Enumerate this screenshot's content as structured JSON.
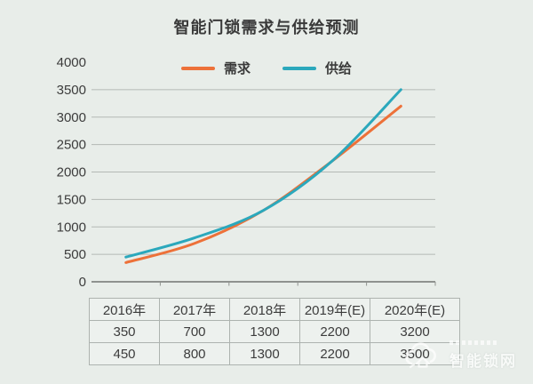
{
  "title": "智能门锁需求与供给预测",
  "chart_data": {
    "type": "line",
    "title": "智能门锁需求与供给预测",
    "categories": [
      "2016年",
      "2017年",
      "2018年",
      "2019年(E)",
      "2020年(E)"
    ],
    "series": [
      {
        "name": "需求",
        "color": "#ed7139",
        "values": [
          350,
          700,
          1300,
          2200,
          3200
        ]
      },
      {
        "name": "供给",
        "color": "#2ba8bc",
        "values": [
          450,
          800,
          1300,
          2200,
          3500
        ]
      }
    ],
    "ylim": [
      0,
      4000
    ],
    "ytick_step": 500,
    "grid": true,
    "smooth": true,
    "legend_position": "top-center"
  },
  "table": {
    "header": [
      "2016年",
      "2017年",
      "2018年",
      "2019年(E)",
      "2020年(E)"
    ],
    "rows": [
      [
        "350",
        "700",
        "1300",
        "2200",
        "3200"
      ],
      [
        "450",
        "800",
        "1300",
        "2200",
        "3500"
      ]
    ]
  },
  "watermark": {
    "text": "智能锁网",
    "icon": "cloud-home-icon"
  },
  "colors": {
    "background": "#e8ede9",
    "text": "#3c3c3c",
    "grid": "#b3b8b4",
    "axis": "#8f928f",
    "table_border": "#adb3af",
    "demand": "#ed7139",
    "supply": "#2ba8bc",
    "watermark": "#ffffff"
  }
}
